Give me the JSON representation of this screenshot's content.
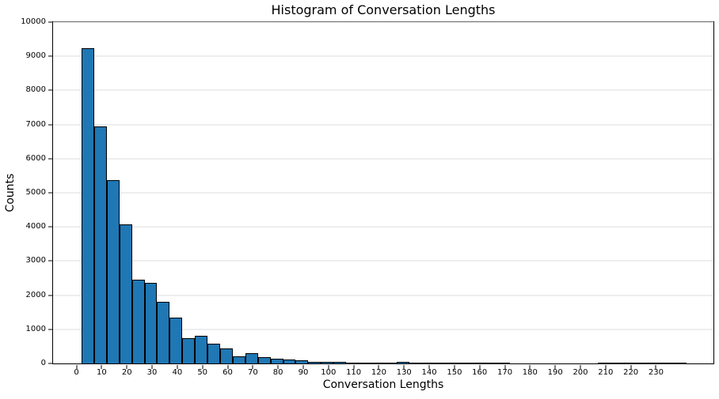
{
  "chart_data": {
    "type": "bar",
    "subtype": "histogram",
    "title": "Histogram of Conversation Lengths",
    "xlabel": "Conversation Lengths",
    "ylabel": "Counts",
    "bin_start": 2,
    "bin_width": 5,
    "values": [
      9240,
      6950,
      5360,
      4080,
      2450,
      2350,
      1800,
      1340,
      750,
      800,
      570,
      440,
      220,
      300,
      190,
      150,
      120,
      100,
      50,
      40,
      50,
      25,
      20,
      15,
      30,
      55,
      15,
      10,
      8,
      8,
      10,
      15,
      12,
      2,
      0,
      0,
      0,
      0,
      0,
      0,
      0,
      2,
      2,
      2,
      2,
      2,
      2,
      2
    ],
    "xlim": [
      -9.3,
      252.8
    ],
    "ylim": [
      0,
      10000
    ],
    "xticks": [
      0,
      10,
      20,
      30,
      40,
      50,
      60,
      70,
      80,
      90,
      100,
      110,
      120,
      130,
      140,
      150,
      160,
      170,
      180,
      190,
      200,
      210,
      220,
      230
    ],
    "yticks": [
      0,
      1000,
      2000,
      3000,
      4000,
      5000,
      6000,
      7000,
      8000,
      9000,
      10000
    ],
    "grid": "horizontal",
    "legend": "none",
    "bar_color": "#1f77b4",
    "bar_edge_color": "#000000",
    "grid_color": "#dcdcdc",
    "axis_color": "#000000",
    "background_color": "#ffffff"
  }
}
